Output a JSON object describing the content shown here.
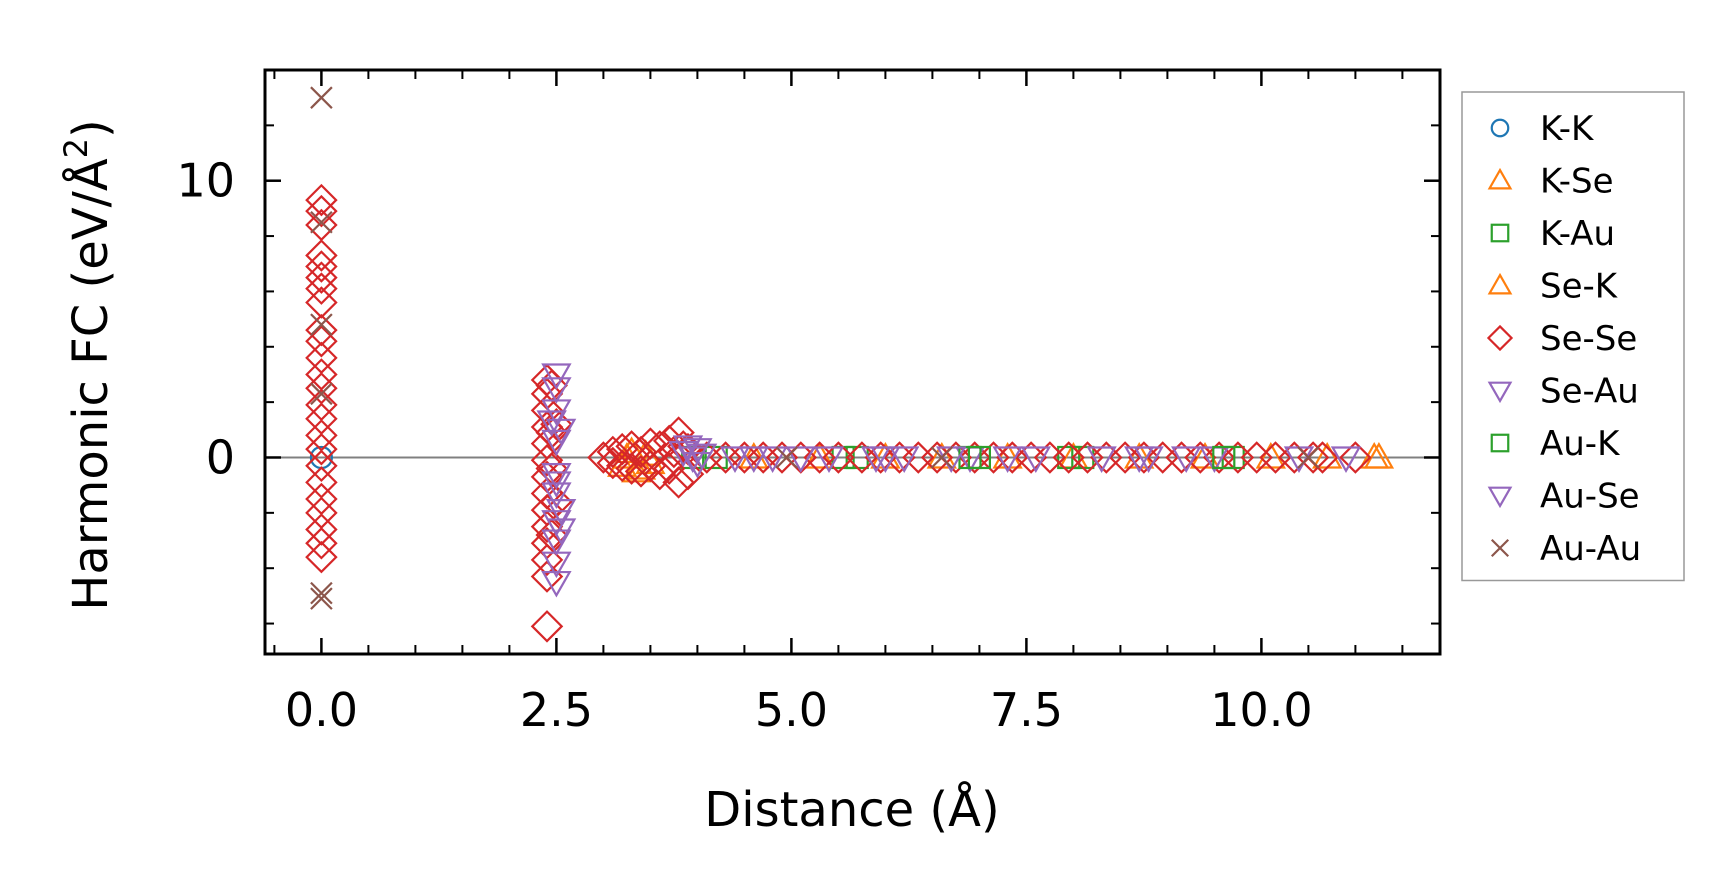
{
  "chart_data": {
    "type": "scatter",
    "xlabel": "Distance (Å)",
    "ylabel": "Harmonic FC (eV/Å",
    "ylabel_sup": "2",
    "ylabel_tail": ")",
    "xlim": [
      -0.6,
      11.9
    ],
    "ylim": [
      -7.1,
      14.0
    ],
    "x_ticks": [
      0.0,
      2.5,
      5.0,
      7.5,
      10.0
    ],
    "x_tick_labels": [
      "0.0",
      "2.5",
      "5.0",
      "7.5",
      "10.0"
    ],
    "y_ticks": [
      0,
      10
    ],
    "y_tick_labels": [
      "0",
      "10"
    ],
    "x_minor_step": 0.5,
    "y_minor_step": 2,
    "zero_line": true,
    "grid": false,
    "legend_position": "outside-right",
    "series": [
      {
        "name": "K-K",
        "marker": "circle",
        "color": "#1f77b4",
        "points": [
          [
            0.0,
            0.0
          ]
        ]
      },
      {
        "name": "K-Se",
        "marker": "triangle-up",
        "color": "#ff7f0e",
        "points": [
          [
            3.2,
            -0.3
          ],
          [
            3.3,
            0.2
          ],
          [
            3.35,
            -0.5
          ],
          [
            3.45,
            0.1
          ],
          [
            3.5,
            -0.2
          ],
          [
            4.6,
            0.0
          ],
          [
            5.3,
            0.0
          ],
          [
            6.0,
            0.0
          ],
          [
            6.6,
            0.0
          ],
          [
            7.3,
            0.0
          ],
          [
            8.0,
            0.0
          ],
          [
            8.7,
            0.0
          ],
          [
            9.4,
            0.0
          ],
          [
            10.1,
            0.0
          ],
          [
            10.7,
            0.0
          ],
          [
            11.25,
            0.0
          ]
        ]
      },
      {
        "name": "K-Au",
        "marker": "square",
        "color": "#2ca02c",
        "points": [
          [
            3.95,
            0.0
          ],
          [
            4.2,
            0.0
          ],
          [
            5.55,
            0.0
          ],
          [
            5.7,
            0.0
          ],
          [
            7.95,
            0.0
          ],
          [
            8.1,
            0.0
          ],
          [
            9.7,
            0.0
          ]
        ]
      },
      {
        "name": "Se-K",
        "marker": "triangle-up",
        "color": "#ff7f0e",
        "points": [
          [
            3.25,
            0.0
          ],
          [
            3.4,
            -0.4
          ],
          [
            11.2,
            0.0
          ]
        ]
      },
      {
        "name": "Se-Se",
        "marker": "diamond",
        "color": "#d62728",
        "points": [
          [
            0.0,
            9.3
          ],
          [
            0.0,
            8.9
          ],
          [
            0.0,
            8.4
          ],
          [
            0.0,
            7.3
          ],
          [
            0.0,
            6.9
          ],
          [
            0.0,
            6.5
          ],
          [
            0.0,
            6.1
          ],
          [
            0.0,
            5.6
          ],
          [
            0.0,
            4.6
          ],
          [
            0.0,
            4.2
          ],
          [
            0.0,
            3.6
          ],
          [
            0.0,
            3.0
          ],
          [
            0.0,
            2.5
          ],
          [
            0.0,
            1.9
          ],
          [
            0.0,
            1.4
          ],
          [
            0.0,
            0.8
          ],
          [
            0.0,
            0.3
          ],
          [
            0.0,
            -0.3
          ],
          [
            0.0,
            -0.9
          ],
          [
            0.0,
            -1.5
          ],
          [
            0.0,
            -2.0
          ],
          [
            0.0,
            -2.6
          ],
          [
            0.0,
            -3.1
          ],
          [
            0.0,
            -3.6
          ],
          [
            2.4,
            2.8
          ],
          [
            2.4,
            2.3
          ],
          [
            2.4,
            1.7
          ],
          [
            2.4,
            1.1
          ],
          [
            2.4,
            0.5
          ],
          [
            2.4,
            -0.1
          ],
          [
            2.4,
            -0.7
          ],
          [
            2.4,
            -1.3
          ],
          [
            2.4,
            -1.9
          ],
          [
            2.4,
            -2.5
          ],
          [
            2.4,
            -3.1
          ],
          [
            2.4,
            -3.7
          ],
          [
            2.4,
            -4.3
          ],
          [
            2.4,
            -6.1
          ],
          [
            2.45,
            2.6
          ],
          [
            2.45,
            0.9
          ],
          [
            2.45,
            -0.4
          ],
          [
            2.45,
            -2.8
          ],
          [
            2.5,
            1.2
          ],
          [
            2.5,
            -1.6
          ],
          [
            3.0,
            0.0
          ],
          [
            3.1,
            0.2
          ],
          [
            3.1,
            -0.2
          ],
          [
            3.2,
            0.3
          ],
          [
            3.2,
            -0.3
          ],
          [
            3.3,
            0.4
          ],
          [
            3.3,
            -0.4
          ],
          [
            3.4,
            0.2
          ],
          [
            3.4,
            -0.5
          ],
          [
            3.5,
            0.5
          ],
          [
            3.5,
            -0.3
          ],
          [
            3.6,
            0.4
          ],
          [
            3.6,
            -0.6
          ],
          [
            3.7,
            0.6
          ],
          [
            3.7,
            -0.4
          ],
          [
            3.75,
            0.2
          ],
          [
            3.8,
            -0.9
          ],
          [
            3.8,
            0.9
          ],
          [
            3.85,
            0.4
          ],
          [
            3.9,
            -0.6
          ],
          [
            3.9,
            0.3
          ],
          [
            4.1,
            0.0
          ],
          [
            4.3,
            0.0
          ],
          [
            4.5,
            0.0
          ],
          [
            4.7,
            0.0
          ],
          [
            4.9,
            0.0
          ],
          [
            5.1,
            0.0
          ],
          [
            5.3,
            0.0
          ],
          [
            5.5,
            0.0
          ],
          [
            5.75,
            0.0
          ],
          [
            5.95,
            0.0
          ],
          [
            6.15,
            0.0
          ],
          [
            6.35,
            0.0
          ],
          [
            6.55,
            0.0
          ],
          [
            6.75,
            0.0
          ],
          [
            6.95,
            0.0
          ],
          [
            7.15,
            0.0
          ],
          [
            7.35,
            0.0
          ],
          [
            7.55,
            0.0
          ],
          [
            7.75,
            0.0
          ],
          [
            7.95,
            0.0
          ],
          [
            8.15,
            0.0
          ],
          [
            8.35,
            0.0
          ],
          [
            8.55,
            0.0
          ],
          [
            8.75,
            0.0
          ],
          [
            8.95,
            0.0
          ],
          [
            9.15,
            0.0
          ],
          [
            9.35,
            0.0
          ],
          [
            9.55,
            0.0
          ],
          [
            9.75,
            0.0
          ],
          [
            9.95,
            0.0
          ],
          [
            10.15,
            0.0
          ],
          [
            10.35,
            0.0
          ],
          [
            10.55,
            0.0
          ],
          [
            10.65,
            0.0
          ],
          [
            11.0,
            0.0
          ]
        ]
      },
      {
        "name": "Se-Au",
        "marker": "triangle-down",
        "color": "#9467bd",
        "points": [
          [
            2.5,
            3.0
          ],
          [
            2.5,
            2.5
          ],
          [
            2.5,
            1.7
          ],
          [
            2.5,
            0.6
          ],
          [
            2.5,
            -0.6
          ],
          [
            2.5,
            -1.3
          ],
          [
            2.5,
            -2.3
          ],
          [
            2.5,
            -3.0
          ],
          [
            2.5,
            -3.8
          ],
          [
            2.5,
            -4.5
          ],
          [
            2.55,
            1.0
          ],
          [
            2.55,
            -1.9
          ],
          [
            3.9,
            0.4
          ],
          [
            3.95,
            0.0
          ],
          [
            4.0,
            -0.2
          ],
          [
            4.05,
            0.1
          ],
          [
            4.4,
            0.0
          ],
          [
            4.6,
            0.0
          ],
          [
            4.8,
            0.0
          ],
          [
            5.1,
            0.0
          ],
          [
            5.4,
            0.0
          ],
          [
            5.9,
            0.0
          ],
          [
            6.2,
            0.0
          ],
          [
            6.9,
            0.0
          ],
          [
            7.3,
            0.0
          ],
          [
            7.6,
            0.0
          ],
          [
            8.3,
            0.0
          ],
          [
            8.8,
            0.0
          ],
          [
            9.2,
            0.0
          ],
          [
            9.5,
            0.0
          ],
          [
            10.4,
            0.0
          ],
          [
            10.9,
            0.0
          ]
        ]
      },
      {
        "name": "Au-K",
        "marker": "square",
        "color": "#2ca02c",
        "points": [
          [
            6.9,
            0.0
          ],
          [
            7.0,
            0.0
          ],
          [
            9.6,
            0.0
          ]
        ]
      },
      {
        "name": "Au-Se",
        "marker": "triangle-down",
        "color": "#9467bd",
        "points": [
          [
            2.45,
            1.3
          ],
          [
            2.5,
            -0.9
          ],
          [
            2.55,
            -2.6
          ],
          [
            3.85,
            0.2
          ],
          [
            4.0,
            0.3
          ],
          [
            6.0,
            0.0
          ],
          [
            6.7,
            0.0
          ],
          [
            8.7,
            0.0
          ]
        ]
      },
      {
        "name": "Au-Au",
        "marker": "x",
        "color": "#8c564b",
        "points": [
          [
            0.0,
            13.0
          ],
          [
            0.0,
            8.5
          ],
          [
            0.0,
            4.8
          ],
          [
            0.0,
            2.3
          ],
          [
            0.0,
            -4.9
          ],
          [
            0.0,
            -5.1
          ],
          [
            4.95,
            0.0
          ],
          [
            6.6,
            0.0
          ],
          [
            10.5,
            0.0
          ]
        ]
      }
    ]
  }
}
